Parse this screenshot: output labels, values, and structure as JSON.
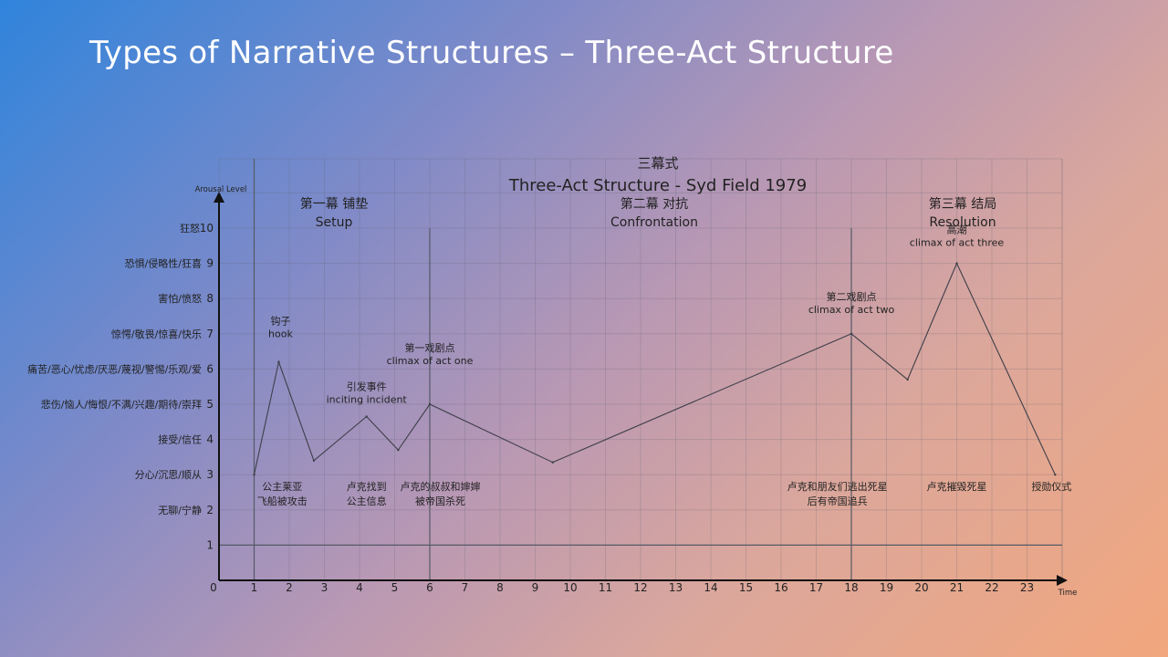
{
  "slide": {
    "title": "Types of Narrative Structures – Three-Act Structure"
  },
  "chart_data": {
    "type": "line",
    "title": "三幕式",
    "subtitle": "Three-Act Structure - Syd Field 1979",
    "ylabel": "Arousal Level",
    "xlabel": "Time",
    "xlim": [
      0,
      24
    ],
    "ylim": [
      0,
      10
    ],
    "grid": true,
    "x_ticks": [
      0,
      1,
      2,
      3,
      4,
      5,
      6,
      7,
      8,
      9,
      10,
      11,
      12,
      13,
      14,
      15,
      16,
      17,
      18,
      19,
      20,
      21,
      22,
      23
    ],
    "y_ticks": [
      1,
      2,
      3,
      4,
      5,
      6,
      7,
      8,
      9,
      10
    ],
    "y_tick_label": "0",
    "y_category_labels": [
      {
        "y": 10,
        "label": "狂怒"
      },
      {
        "y": 9,
        "label": "恐惧/侵略性/狂喜"
      },
      {
        "y": 8,
        "label": "害怕/愤怒"
      },
      {
        "y": 7,
        "label": "惊愕/敬畏/惊喜/快乐"
      },
      {
        "y": 6,
        "label": "痛苦/恶心/忧虑/厌恶/蔑视/警惕/乐观/爱"
      },
      {
        "y": 5,
        "label": "悲伤/恼人/悔恨/不满/兴趣/期待/崇拜"
      },
      {
        "y": 4,
        "label": "接受/信任"
      },
      {
        "y": 3,
        "label": "分心/沉思/顺从"
      },
      {
        "y": 2,
        "label": "无聊/宁静"
      }
    ],
    "acts": [
      {
        "zh": "第一幕 铺垫",
        "en": "Setup",
        "x_start": 1,
        "x_end": 6
      },
      {
        "zh": "第二幕 对抗",
        "en": "Confrontation",
        "x_start": 6,
        "x_end": 18
      },
      {
        "zh": "第三幕 结局",
        "en": "Resolution",
        "x_start": 18,
        "x_end": 24
      }
    ],
    "act_dividers_full": [
      1
    ],
    "act_dividers": [
      6,
      18
    ],
    "baseline_y": 1,
    "series": [
      {
        "x": [
          1,
          1.7,
          2.7,
          4.2,
          5.1,
          6,
          9.5,
          18,
          19.6,
          21,
          23.8
        ],
        "y": [
          3,
          6.2,
          3.4,
          4.65,
          3.7,
          5,
          3.35,
          7,
          5.7,
          9,
          3
        ]
      }
    ],
    "annotations": [
      {
        "x": 1.7,
        "y": 6.2,
        "zh": "钩子",
        "en": "hook"
      },
      {
        "x": 4.2,
        "y": 4.65,
        "zh": "引发事件",
        "en": "inciting incident"
      },
      {
        "x": 6,
        "y": 5,
        "zh": "第一戏剧点",
        "en": "climax of act one"
      },
      {
        "x": 18,
        "y": 7,
        "zh": "第二戏剧点",
        "en": "climax of act two"
      },
      {
        "x": 21,
        "y": 9,
        "zh": "高潮",
        "en": "climax of act three"
      }
    ],
    "events": [
      {
        "x": 1.8,
        "lines": [
          "公主莱亚",
          "飞船被攻击"
        ]
      },
      {
        "x": 4.2,
        "lines": [
          "卢克找到",
          "公主信息"
        ]
      },
      {
        "x": 6.3,
        "lines": [
          "卢克的叔叔和婶婶",
          "被帝国杀死"
        ]
      },
      {
        "x": 17.6,
        "lines": [
          "卢克和朋友们逃出死星",
          "后有帝国追兵"
        ]
      },
      {
        "x": 21,
        "lines": [
          "卢克摧毁死星"
        ]
      },
      {
        "x": 23.7,
        "lines": [
          "授勋仪式"
        ]
      }
    ]
  }
}
